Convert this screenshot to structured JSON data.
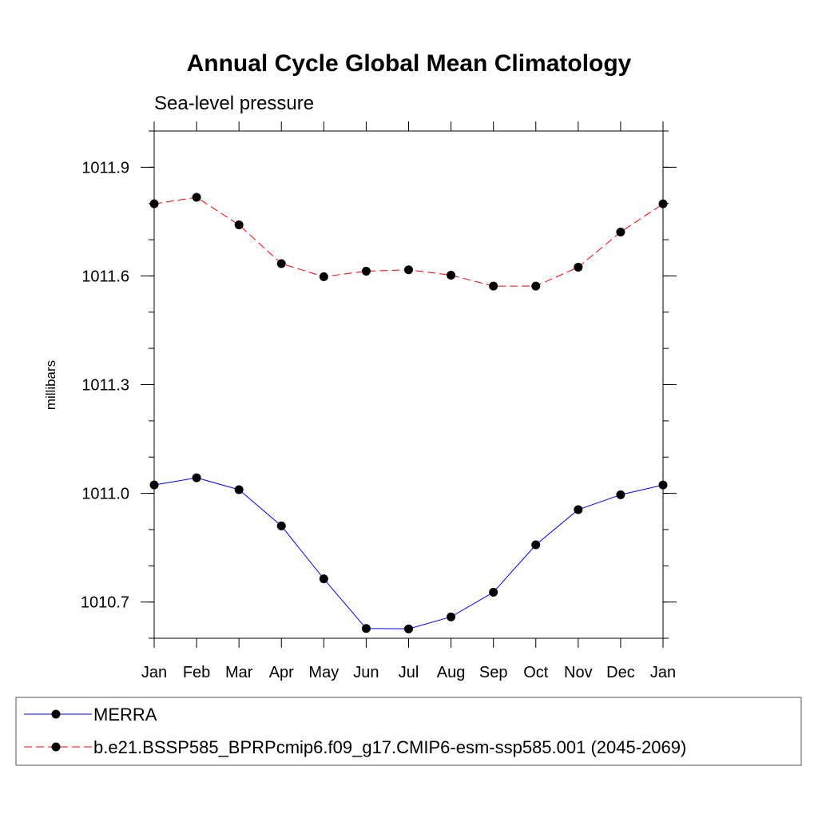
{
  "chart_data": {
    "type": "line",
    "title": "Annual Cycle Global Mean Climatology",
    "subtitle": "Sea-level pressure",
    "ylabel": "millibars",
    "xlabel": "",
    "categories": [
      "Jan",
      "Feb",
      "Mar",
      "Apr",
      "May",
      "Jun",
      "Jul",
      "Aug",
      "Sep",
      "Oct",
      "Nov",
      "Dec",
      "Jan"
    ],
    "ylim": [
      1010.6,
      1012.0
    ],
    "yticks": [
      1010.7,
      1011.0,
      1011.3,
      1011.6,
      1011.9
    ],
    "ytick_labels": [
      "1010.7",
      "1011.0",
      "1011.3",
      "1011.6",
      "1011.9"
    ],
    "grid": false,
    "legend_placement": "bottom",
    "series": [
      {
        "name": "MERRA",
        "color": "#0000ff",
        "line_style": "solid",
        "marker": "filled-circle",
        "values": [
          1011.023,
          1011.043,
          1011.01,
          1010.91,
          1010.764,
          1010.627,
          1010.626,
          1010.659,
          1010.727,
          1010.858,
          1010.955,
          1010.996,
          1011.023
        ]
      },
      {
        "name": "b.e21.BSSP585_BPRPcmip6.f09_g17.CMIP6-esm-ssp585.001 (2045-2069)",
        "color": "#ff0000",
        "line_style": "dashed",
        "marker": "filled-circle",
        "values": [
          1011.799,
          1011.817,
          1011.741,
          1011.634,
          1011.598,
          1011.613,
          1011.617,
          1011.602,
          1011.572,
          1011.572,
          1011.624,
          1011.721,
          1011.799
        ]
      }
    ]
  }
}
